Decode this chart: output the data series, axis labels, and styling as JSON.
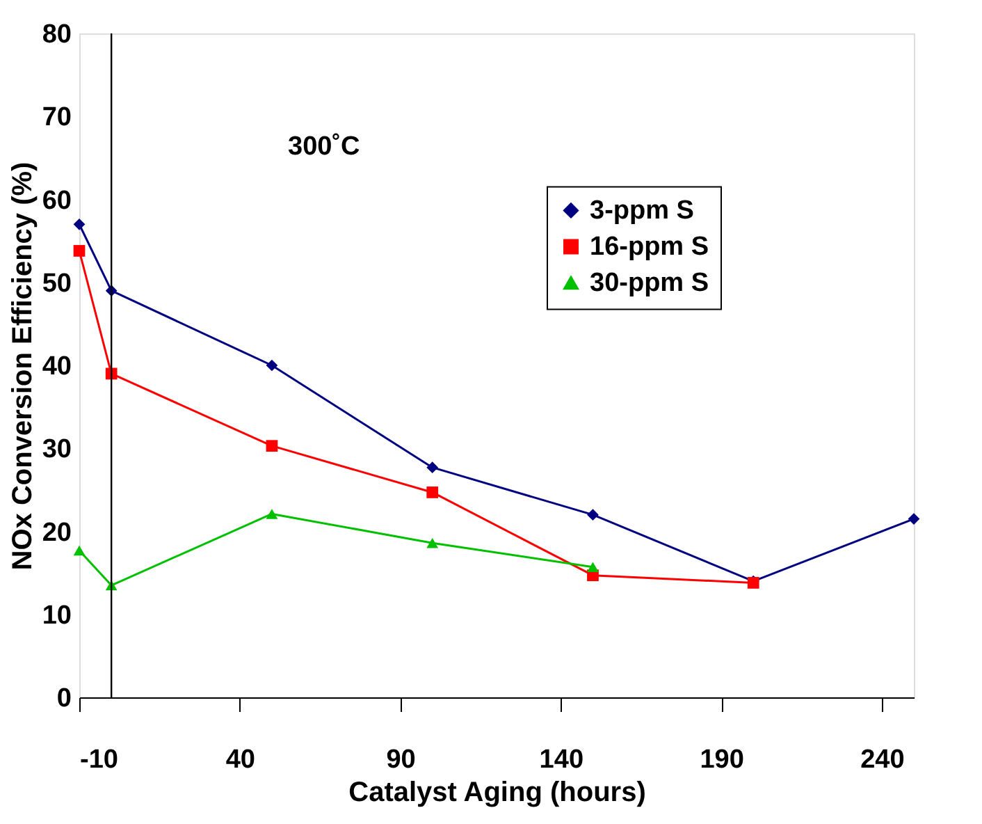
{
  "chart_data": {
    "type": "line",
    "xlabel": "Catalyst Aging  (hours)",
    "ylabel": "NOx Conversion Efficiency  (%)",
    "annotations": [
      "300˚C"
    ],
    "xlim": [
      -10,
      250
    ],
    "xticks": [
      -10,
      40,
      90,
      140,
      190,
      240
    ],
    "ylim": [
      0,
      80
    ],
    "yticks": [
      0,
      10,
      20,
      30,
      40,
      50,
      60,
      70,
      80
    ],
    "grid": false,
    "legend": "right",
    "ref_lines": [
      {
        "axis": "x",
        "value": 0,
        "color": "#000000"
      }
    ],
    "series": [
      {
        "name": "3-ppm S",
        "color": "#000080",
        "marker": "diamond",
        "x": [
          -10,
          0,
          50,
          100,
          150,
          200,
          250
        ],
        "values": [
          57,
          49,
          40,
          27.7,
          22,
          14,
          21.5
        ]
      },
      {
        "name": "16-ppm S",
        "color": "#ff0000",
        "marker": "square",
        "x": [
          -10,
          0,
          50,
          100,
          150,
          200
        ],
        "values": [
          53.8,
          39,
          30.3,
          24.7,
          14.7,
          13.8
        ]
      },
      {
        "name": "30-ppm S",
        "color": "#00c000",
        "marker": "triangle",
        "x": [
          -10,
          0,
          50,
          100,
          150
        ],
        "values": [
          17.7,
          13.5,
          22.1,
          18.6,
          15.7
        ]
      }
    ]
  }
}
